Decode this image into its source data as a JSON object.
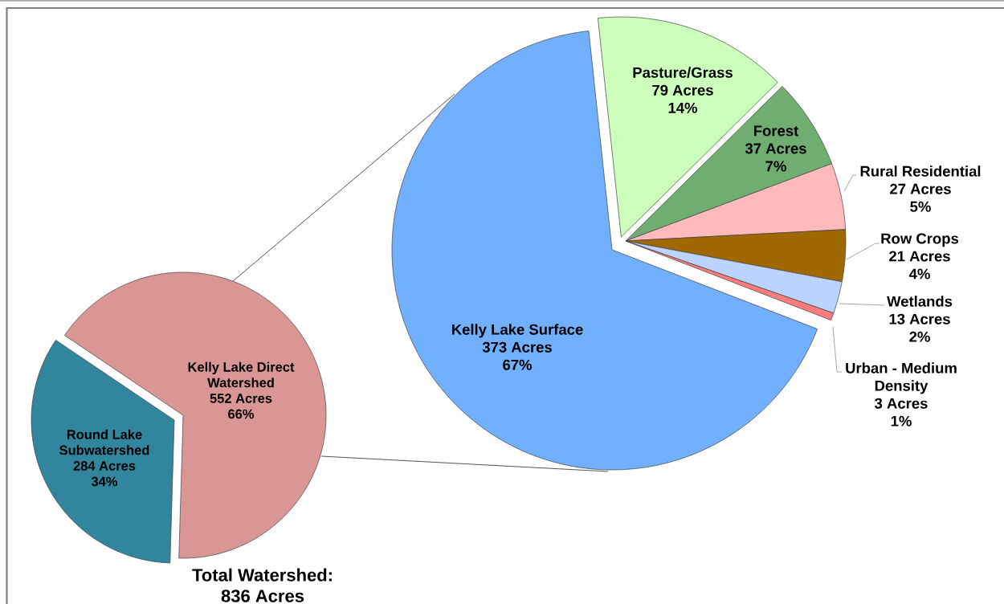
{
  "chart_data": [
    {
      "type": "pie",
      "title": "Total Watershed: 836 Acres",
      "categories": [
        "Round Lake Subwatershed",
        "Kelly Lake Direct Watershed"
      ],
      "values": [
        284,
        552
      ],
      "colors": [
        "#31859c",
        "#d99694"
      ],
      "value_labels": [
        "284 Acres 34%",
        "552 Acres 66%"
      ]
    },
    {
      "type": "pie",
      "categories": [
        "Kelly Lake Surface",
        "Pasture/Grass",
        "Forest",
        "Rural Residential",
        "Row Crops",
        "Wetlands",
        "Urban - Medium Density"
      ],
      "values": [
        373,
        79,
        37,
        27,
        21,
        13,
        3
      ],
      "colors": [
        "#70b0ff",
        "#ccffbb",
        "#70ad70",
        "#ffbbbb",
        "#a06800",
        "#bdd3ff",
        "#ff7c7c"
      ],
      "value_labels": [
        "373 Acres 67%",
        "79 Acres 14%",
        "37 Acres 7%",
        "27 Acres 5%",
        "21 Acres 4%",
        "13 Acres 2%",
        "3 Acres 1%"
      ]
    }
  ]
}
